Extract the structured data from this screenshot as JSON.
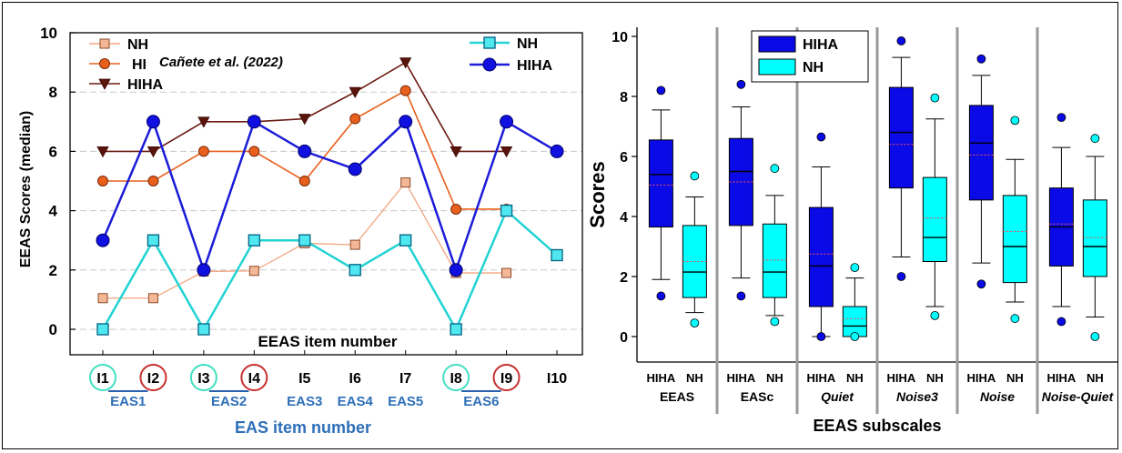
{
  "colors": {
    "nh_line": "#F2A57E",
    "hi_line": "#E8601C",
    "hiha_left_line": "#6B1A10",
    "nh_cyan": "#22D3D3",
    "hiha_blue": "#1B1BD8",
    "box_hiha": "#0A0AE6",
    "box_nh": "#00FFFF",
    "circle_teal": "#40E0C0",
    "circle_red": "#C83030",
    "label_blue": "#2E6FB8",
    "underline": "#2B5FB0"
  },
  "chart_data": [
    {
      "type": "line",
      "ylabel": "EEAS Scores (median)",
      "xlabel": "EEAS item number",
      "annotation": "Cañete et al. (2022)",
      "ylim": [
        0,
        10
      ],
      "yticks": [
        "0",
        "2",
        "4",
        "6",
        "8",
        "10"
      ],
      "categories": [
        "I1",
        "I2",
        "I3",
        "I4",
        "I5",
        "I6",
        "I7",
        "I8",
        "I9",
        "I10"
      ],
      "item_circles": [
        "teal",
        "red",
        "teal",
        "red",
        null,
        null,
        null,
        "teal",
        "red",
        null
      ],
      "groups": [
        {
          "label": "EAS1",
          "items": [
            0,
            1
          ],
          "underline": true
        },
        {
          "label": "EAS2",
          "items": [
            2,
            3
          ],
          "underline": true
        },
        {
          "label": "EAS3",
          "items": [
            4,
            4
          ],
          "underline": false
        },
        {
          "label": "EAS4",
          "items": [
            5,
            5
          ],
          "underline": false
        },
        {
          "label": "EAS5",
          "items": [
            6,
            6
          ],
          "underline": false
        },
        {
          "label": "EAS6",
          "items": [
            7,
            8
          ],
          "underline": true
        }
      ],
      "group_axis_label": "EAS item number",
      "series": [
        {
          "name": "NH",
          "marker": "square",
          "values": [
            1.05,
            1.05,
            1.95,
            1.97,
            2.9,
            2.85,
            4.95,
            1.9,
            1.9,
            null
          ]
        },
        {
          "name": "HI",
          "marker": "circle",
          "values": [
            5.0,
            5.0,
            6.0,
            6.0,
            5.0,
            7.1,
            8.05,
            4.05,
            4.05,
            null
          ]
        },
        {
          "name": "HIHA",
          "marker": "triangle-down",
          "values": [
            6.0,
            6.0,
            7.0,
            7.0,
            7.1,
            8.0,
            9.0,
            6.0,
            6.0,
            null
          ]
        },
        {
          "name": "NH",
          "marker": "square-open",
          "values": [
            0,
            3,
            0,
            3,
            3,
            2,
            3,
            0,
            4,
            2.5
          ]
        },
        {
          "name": "HIHA",
          "marker": "circle-filled",
          "values": [
            3,
            7,
            2,
            7,
            6,
            5.4,
            7,
            2,
            7,
            6
          ]
        }
      ],
      "legend_left": [
        "NH",
        "HI",
        "HIHA"
      ],
      "legend_right": [
        "NH",
        "HIHA"
      ]
    },
    {
      "type": "box",
      "ylabel": "Scores",
      "xlabel": "EEAS subscales",
      "ylim": [
        0,
        10
      ],
      "yticks": [
        "0",
        "2",
        "4",
        "6",
        "8",
        "10"
      ],
      "legend": [
        "HIHA",
        "NH"
      ],
      "box_categories": [
        "HIHA",
        "NH"
      ],
      "groups": [
        {
          "label": "EEAS",
          "italic": false,
          "boxes": [
            {
              "min": 1.9,
              "q1": 3.65,
              "median": 5.4,
              "mean": 5.05,
              "q3": 6.55,
              "max": 7.55,
              "outliers": [
                1.35,
                8.2
              ]
            },
            {
              "min": 0.8,
              "q1": 1.3,
              "median": 2.15,
              "mean": 2.5,
              "q3": 3.7,
              "max": 4.65,
              "outliers": [
                0.45,
                5.35
              ]
            }
          ]
        },
        {
          "label": "EASc",
          "italic": false,
          "boxes": [
            {
              "min": 1.95,
              "q1": 3.7,
              "median": 5.5,
              "mean": 5.15,
              "q3": 6.6,
              "max": 7.65,
              "outliers": [
                1.35,
                8.4
              ]
            },
            {
              "min": 0.7,
              "q1": 1.3,
              "median": 2.15,
              "mean": 2.55,
              "q3": 3.75,
              "max": 4.7,
              "outliers": [
                0.5,
                5.6
              ]
            }
          ]
        },
        {
          "label": "Quiet",
          "italic": true,
          "boxes": [
            {
              "min": 0,
              "q1": 1.0,
              "median": 2.35,
              "mean": 2.75,
              "q3": 4.3,
              "max": 5.65,
              "outliers": [
                0,
                6.65
              ]
            },
            {
              "min": 0,
              "q1": 0,
              "median": 0.35,
              "mean": 0.6,
              "q3": 1.0,
              "max": 1.95,
              "outliers": [
                0,
                2.3
              ]
            }
          ]
        },
        {
          "label": "Noise3",
          "italic": true,
          "boxes": [
            {
              "min": 2.65,
              "q1": 4.95,
              "median": 6.8,
              "mean": 6.4,
              "q3": 8.3,
              "max": 9.3,
              "outliers": [
                2.0,
                9.85
              ]
            },
            {
              "min": 1.0,
              "q1": 2.5,
              "median": 3.3,
              "mean": 3.95,
              "q3": 5.3,
              "max": 7.25,
              "outliers": [
                0.7,
                7.95
              ]
            }
          ]
        },
        {
          "label": "Noise",
          "italic": true,
          "boxes": [
            {
              "min": 2.45,
              "q1": 4.55,
              "median": 6.45,
              "mean": 6.05,
              "q3": 7.7,
              "max": 8.7,
              "outliers": [
                1.75,
                9.25
              ]
            },
            {
              "min": 1.15,
              "q1": 1.8,
              "median": 3.0,
              "mean": 3.5,
              "q3": 4.7,
              "max": 5.9,
              "outliers": [
                0.6,
                7.2
              ]
            }
          ]
        },
        {
          "label": "Noise-Quiet",
          "italic": true,
          "boxes": [
            {
              "min": 1.0,
              "q1": 2.35,
              "median": 3.65,
              "mean": 3.75,
              "q3": 4.95,
              "max": 6.3,
              "outliers": [
                0.5,
                7.3
              ]
            },
            {
              "min": 0.65,
              "q1": 2.0,
              "median": 3.0,
              "mean": 3.3,
              "q3": 4.55,
              "max": 6.0,
              "outliers": [
                0,
                6.6
              ]
            }
          ]
        }
      ]
    }
  ]
}
